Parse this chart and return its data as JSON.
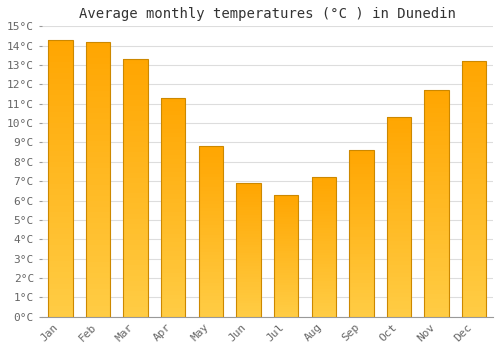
{
  "title": "Average monthly temperatures (°C ) in Dunedin",
  "months": [
    "Jan",
    "Feb",
    "Mar",
    "Apr",
    "May",
    "Jun",
    "Jul",
    "Aug",
    "Sep",
    "Oct",
    "Nov",
    "Dec"
  ],
  "values": [
    14.3,
    14.2,
    13.3,
    11.3,
    8.8,
    6.9,
    6.3,
    7.2,
    8.6,
    10.3,
    11.7,
    13.2
  ],
  "bar_color_light": "#FFCC44",
  "bar_color_dark": "#FFA500",
  "bar_edge_color": "#CC8800",
  "ylim": [
    0,
    15
  ],
  "yticks": [
    0,
    1,
    2,
    3,
    4,
    5,
    6,
    7,
    8,
    9,
    10,
    11,
    12,
    13,
    14,
    15
  ],
  "background_color": "#FFFFFF",
  "grid_color": "#DDDDDD",
  "title_fontsize": 10,
  "tick_fontsize": 8,
  "font_family": "monospace"
}
